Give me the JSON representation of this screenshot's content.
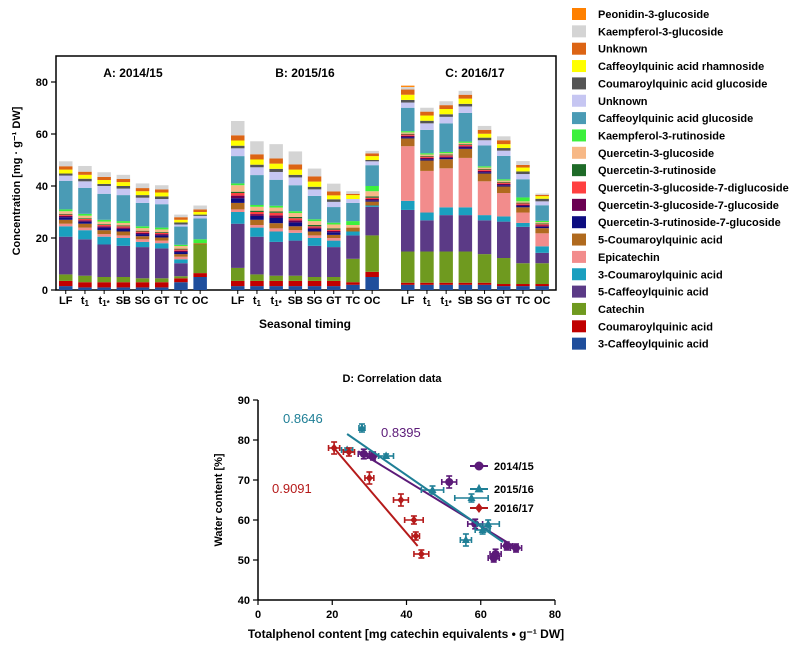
{
  "chart_data": [
    {
      "type": "stacked-bar",
      "ylabel": "Concentration [mg · g⁻¹ DW]",
      "xlabel": "Seasonal timing",
      "ylim": [
        0,
        90
      ],
      "yticks": [
        0,
        20,
        40,
        60,
        80
      ],
      "categories": [
        {
          "label": "LF",
          "sub": ""
        },
        {
          "label": "t",
          "sub": "1"
        },
        {
          "label": "t",
          "sub": "1*"
        },
        {
          "label": "SB",
          "sub": ""
        },
        {
          "label": "SG",
          "sub": ""
        },
        {
          "label": "GT",
          "sub": ""
        },
        {
          "label": "TC",
          "sub": ""
        },
        {
          "label": "OC",
          "sub": ""
        }
      ],
      "compounds": [
        {
          "name": "3-Caffeoylquinic acid",
          "color": "#1f4e9c"
        },
        {
          "name": "Coumaroylquinic acid",
          "color": "#c00000"
        },
        {
          "name": "Catechin",
          "color": "#6f9a1f"
        },
        {
          "name": "5-Caffeoylquinic acid",
          "color": "#5b3a86"
        },
        {
          "name": "3-Coumaroylquinic acid",
          "color": "#1a9fbf"
        },
        {
          "name": "Epicatechin",
          "color": "#f28c8c"
        },
        {
          "name": "5-Coumaroylquinic acid",
          "color": "#b06a1e"
        },
        {
          "name": "Quercetin-3-rutinoside-7-glucoside",
          "color": "#0d0d80"
        },
        {
          "name": "Quercetin-3-glucoside-7-glucoside",
          "color": "#6b0052"
        },
        {
          "name": "Quercetin-3-glucoside-7-diglucoside",
          "color": "#ff4040"
        },
        {
          "name": "Quercetin-3-rutinoside",
          "color": "#1e6b28"
        },
        {
          "name": "Quercetin-3-glucoside",
          "color": "#f7b886"
        },
        {
          "name": "Kaempferol-3-rutinoside",
          "color": "#3cf03c"
        },
        {
          "name": "Caffeoylquinic acid glucoside",
          "color": "#4a9bb5"
        },
        {
          "name": "Unknown",
          "color": "#c6c6f2"
        },
        {
          "name": "Coumaroylquinic acid glucoside",
          "color": "#555555"
        },
        {
          "name": "Caffeoylquinic acid rhamnoside",
          "color": "#ffff00"
        },
        {
          "name": "Unknown",
          "color": "#dc6414"
        },
        {
          "name": "Kaempferol-3-glucoside",
          "color": "#d4d4d4"
        },
        {
          "name": "Peonidin-3-glucoside",
          "color": "#ff8000"
        }
      ],
      "groups": [
        {
          "title": "A: 2014/15",
          "values": [
            [
              1.5,
              2,
              2.5,
              14.5,
              4,
              1,
              1.5,
              1,
              0.5,
              0.5,
              0.3,
              1,
              0.7,
              11,
              2,
              0.8,
              1.5,
              1.3,
              1.9,
              0
            ],
            [
              1,
              2,
              2.5,
              14,
              3.5,
              1,
              1.5,
              0.8,
              0.5,
              0.5,
              0.3,
              1,
              0.7,
              10,
              2.5,
              1,
              1.5,
              1.2,
              2.2,
              0
            ],
            [
              1,
              2,
              2,
              12.5,
              3,
              1,
              1.5,
              1,
              0.5,
              0.5,
              0.3,
              1,
              0.7,
              10,
              3,
              0.8,
              1.5,
              1.2,
              1.8,
              0
            ],
            [
              1,
              2,
              2,
              12,
              3,
              1,
              1.5,
              1,
              0.5,
              0.5,
              0.3,
              1,
              0.7,
              10,
              2.5,
              1,
              1.5,
              1.2,
              1.6,
              0
            ],
            [
              1,
              2,
              1.5,
              12,
              2,
              1,
              1.2,
              0.8,
              0.5,
              0.5,
              0.3,
              1,
              0.7,
              9,
              2,
              1,
              1.5,
              1.2,
              1.8,
              0
            ],
            [
              1,
              2,
              1.5,
              11.5,
              2,
              1,
              1.2,
              0.8,
              0.5,
              0.5,
              0.3,
              1,
              0.7,
              9,
              2,
              1,
              1.5,
              1.2,
              1.6,
              0
            ],
            [
              3,
              1.5,
              0.8,
              5,
              1.5,
              1,
              1,
              0.8,
              0.5,
              0.5,
              0.3,
              1,
              0.5,
              7,
              0.8,
              0.8,
              1,
              1,
              1,
              0
            ],
            [
              5,
              1.5,
              11,
              0,
              0,
              0,
              0.5,
              0,
              0,
              0,
              0,
              0,
              1.5,
              8,
              1,
              0.5,
              1,
              1,
              1.5,
              0
            ]
          ]
        },
        {
          "title": "B: 2015/16",
          "values": [
            [
              1.5,
              2,
              5,
              17,
              4.5,
              1,
              2.5,
              1.8,
              1,
              1,
              0.5,
              2.5,
              0.7,
              10.5,
              3,
              1,
              2,
              2,
              5.5,
              0
            ],
            [
              1.5,
              2,
              2.5,
              14.5,
              3.5,
              1,
              2,
              1.5,
              0.7,
              0.8,
              0.5,
              1.5,
              0.7,
              11.5,
              3,
              1,
              2,
              2,
              5,
              0
            ],
            [
              1.5,
              2,
              2,
              13,
              4,
              1.2,
              2,
              2,
              1,
              1,
              0.5,
              1.5,
              0.7,
              10,
              3,
              1.2,
              2,
              2,
              5.5,
              0
            ],
            [
              1.5,
              2,
              2,
              13.5,
              3,
              1,
              1.5,
              1.5,
              0.8,
              0.8,
              0.5,
              1.5,
              0.7,
              10,
              3,
              1,
              2,
              2,
              5,
              0
            ],
            [
              1.5,
              2,
              1.5,
              12,
              3,
              1,
              1.5,
              1,
              0.5,
              0.5,
              0.5,
              1.5,
              0.7,
              9,
              2.5,
              1,
              2,
              2,
              3,
              0
            ],
            [
              1.5,
              2,
              1.5,
              11.5,
              2.5,
              1,
              1.2,
              1,
              0.5,
              0.5,
              0.5,
              1.5,
              0.7,
              6,
              2,
              1,
              1.5,
              1.5,
              3,
              0
            ],
            [
              2,
              1,
              9,
              9,
              1.5,
              0,
              1.5,
              0,
              0,
              0,
              0,
              1,
              1.5,
              7,
              1.5,
              0,
              1.5,
              0.5,
              1,
              0
            ],
            [
              5,
              2,
              14,
              11,
              0.5,
              0,
              1.5,
              0.5,
              0.5,
              0.5,
              0.5,
              2,
              2,
              8,
              1.5,
              0.5,
              1.5,
              1,
              1,
              0
            ]
          ]
        },
        {
          "title": "C: 2016/17",
          "values": [
            [
              2,
              0.8,
              12,
              16,
              3.5,
              21,
              3,
              0.5,
              0.5,
              0.5,
              0.3,
              0.5,
              0.5,
              9,
              2,
              1,
              2,
              2,
              1,
              0.5
            ],
            [
              2,
              0.8,
              12,
              12,
              3,
              16,
              4,
              0.5,
              0.5,
              0.5,
              0.3,
              0.5,
              0.5,
              9,
              2.5,
              1,
              2,
              1.5,
              1.5,
              0
            ],
            [
              2,
              0.8,
              12,
              14,
              3,
              15,
              3.5,
              0.5,
              0.5,
              0.5,
              0.3,
              0.5,
              0.5,
              11,
              2.5,
              1,
              2,
              1.5,
              1.5,
              0
            ],
            [
              2,
              0.8,
              12,
              14,
              3,
              19,
              3.5,
              0.5,
              0.5,
              0.5,
              0.3,
              0.5,
              0.5,
              11,
              2.5,
              1,
              2,
              1.5,
              1.5,
              0
            ],
            [
              2,
              0.8,
              11,
              13,
              2,
              13,
              3,
              0.5,
              0.5,
              0.5,
              0.3,
              0.5,
              0.5,
              8,
              2,
              1,
              1.5,
              1.5,
              1.5,
              0
            ],
            [
              1.5,
              0.8,
              10,
              14,
              2,
              9,
              2.5,
              0.5,
              0.5,
              0.5,
              0.3,
              0.5,
              0.5,
              9,
              2,
              1,
              1.5,
              1.5,
              1.5,
              0
            ],
            [
              1.5,
              0.8,
              8,
              14,
              1.5,
              4,
              2,
              0.5,
              0.5,
              0.5,
              0.3,
              0.5,
              1.5,
              7,
              2,
              1,
              1.5,
              1,
              1.5,
              0
            ],
            [
              1.5,
              0.8,
              8,
              4,
              2.5,
              5,
              2,
              0.5,
              0.5,
              0.5,
              0.3,
              0.5,
              0.5,
              6,
              1.5,
              1,
              1,
              0.5,
              0.5,
              0
            ]
          ]
        }
      ]
    },
    {
      "type": "scatter",
      "title": "D: Correlation data",
      "xlabel": "Totalphenol content [mg catechin equivalents • g⁻¹ DW]",
      "ylabel": "Water content [%]",
      "xlim": [
        0,
        80
      ],
      "ylim": [
        40,
        90
      ],
      "xticks": [
        0,
        20,
        40,
        60,
        80
      ],
      "yticks": [
        40,
        50,
        60,
        70,
        80,
        90
      ],
      "series": [
        {
          "name": "2014/15",
          "color": "#5b1a78",
          "marker": "circle",
          "r_label": "0.8395",
          "fit": [
            [
              27,
              77.2
            ],
            [
              70,
              52.8
            ]
          ],
          "points": [
            {
              "x": 28.5,
              "y": 76.5,
              "xerr": 1.5,
              "yerr": 1.2
            },
            {
              "x": 31,
              "y": 76,
              "xerr": 1.5,
              "yerr": 1
            },
            {
              "x": 51.5,
              "y": 69.5,
              "xerr": 2,
              "yerr": 1.5
            },
            {
              "x": 58.5,
              "y": 59,
              "xerr": 2,
              "yerr": 1.2
            },
            {
              "x": 63.5,
              "y": 50.5,
              "xerr": 1.5,
              "yerr": 1
            },
            {
              "x": 64,
              "y": 51.5,
              "xerr": 1.5,
              "yerr": 1.2
            },
            {
              "x": 67,
              "y": 53.5,
              "xerr": 1.5,
              "yerr": 1
            },
            {
              "x": 69.5,
              "y": 53,
              "xerr": 1.5,
              "yerr": 1
            }
          ]
        },
        {
          "name": "2015/16",
          "color": "#1f7f96",
          "marker": "triangle",
          "r_label": "0.8646",
          "fit": [
            [
              24,
              81.5
            ],
            [
              66,
              54.5
            ]
          ],
          "points": [
            {
              "x": 24,
              "y": 77.5,
              "xerr": 1.5,
              "yerr": 0.5
            },
            {
              "x": 28,
              "y": 83,
              "xerr": 0.8,
              "yerr": 1
            },
            {
              "x": 34.5,
              "y": 76,
              "xerr": 2,
              "yerr": 0.5
            },
            {
              "x": 47,
              "y": 67.5,
              "xerr": 3,
              "yerr": 1
            },
            {
              "x": 57.5,
              "y": 65.5,
              "xerr": 4.5,
              "yerr": 1
            },
            {
              "x": 56,
              "y": 55,
              "xerr": 1.5,
              "yerr": 1.5
            },
            {
              "x": 60.5,
              "y": 57.5,
              "xerr": 2,
              "yerr": 1
            },
            {
              "x": 62,
              "y": 59,
              "xerr": 3,
              "yerr": 1
            }
          ]
        },
        {
          "name": "2016/17",
          "color": "#b51a1a",
          "marker": "diamond",
          "r_label": "0.9091",
          "fit": [
            [
              20,
              78.5
            ],
            [
              43,
              53.5
            ]
          ],
          "points": [
            {
              "x": 20.5,
              "y": 78,
              "xerr": 1.5,
              "yerr": 1.5
            },
            {
              "x": 24.5,
              "y": 77,
              "xerr": 1.5,
              "yerr": 1
            },
            {
              "x": 30,
              "y": 70.5,
              "xerr": 1.2,
              "yerr": 1.5
            },
            {
              "x": 38.5,
              "y": 65,
              "xerr": 2,
              "yerr": 1.5
            },
            {
              "x": 42,
              "y": 60,
              "xerr": 2.5,
              "yerr": 1
            },
            {
              "x": 42.5,
              "y": 56,
              "xerr": 1,
              "yerr": 1
            },
            {
              "x": 44,
              "y": 51.5,
              "xerr": 2,
              "yerr": 1
            }
          ]
        }
      ]
    }
  ]
}
